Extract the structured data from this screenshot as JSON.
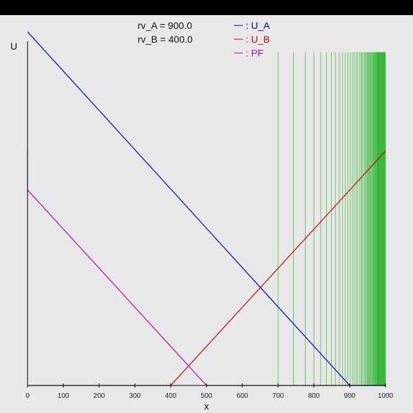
{
  "chart_data": {
    "type": "line",
    "xlabel": "x",
    "ylabel": "U",
    "xlim": [
      0,
      1000
    ],
    "ylim": [
      0,
      1000
    ],
    "x_ticks": [
      0,
      100,
      200,
      300,
      400,
      500,
      600,
      700,
      800,
      900,
      1000
    ],
    "parameters": [
      {
        "label": "rv_A = 900.0"
      },
      {
        "label": "rv_B = 400.0"
      }
    ],
    "series": [
      {
        "name": ": U_A",
        "color": "#0000cc",
        "x": [
          0,
          900,
          1000
        ],
        "y": [
          955,
          0,
          0
        ]
      },
      {
        "name": ": U_B",
        "color": "#cc0000",
        "x": [
          0,
          400,
          1000
        ],
        "y": [
          0,
          0,
          633
        ]
      },
      {
        "name": ": PF",
        "color": "#bb00bb",
        "x": [
          0,
          500,
          1000
        ],
        "y": [
          528,
          0,
          0
        ],
        "vertical_segment": {
          "x": 0,
          "y": [
            528,
            635
          ]
        }
      }
    ],
    "vertical_lines": {
      "color": "#00aa00",
      "y_top": 900,
      "x": [
        700,
        743,
        776,
        800,
        819,
        835,
        849,
        860,
        871,
        880,
        888,
        895,
        902,
        908,
        913,
        918,
        922,
        927,
        931,
        934,
        937,
        941,
        944,
        946,
        949,
        951,
        953,
        955,
        957,
        959,
        961,
        963,
        965,
        966,
        968,
        969,
        971,
        972,
        973,
        975,
        976,
        977,
        978,
        979,
        980,
        981,
        982,
        983,
        984,
        985,
        986,
        987,
        988,
        989,
        990,
        991,
        992,
        993,
        994,
        995,
        996,
        997,
        998,
        999,
        1000
      ]
    }
  }
}
